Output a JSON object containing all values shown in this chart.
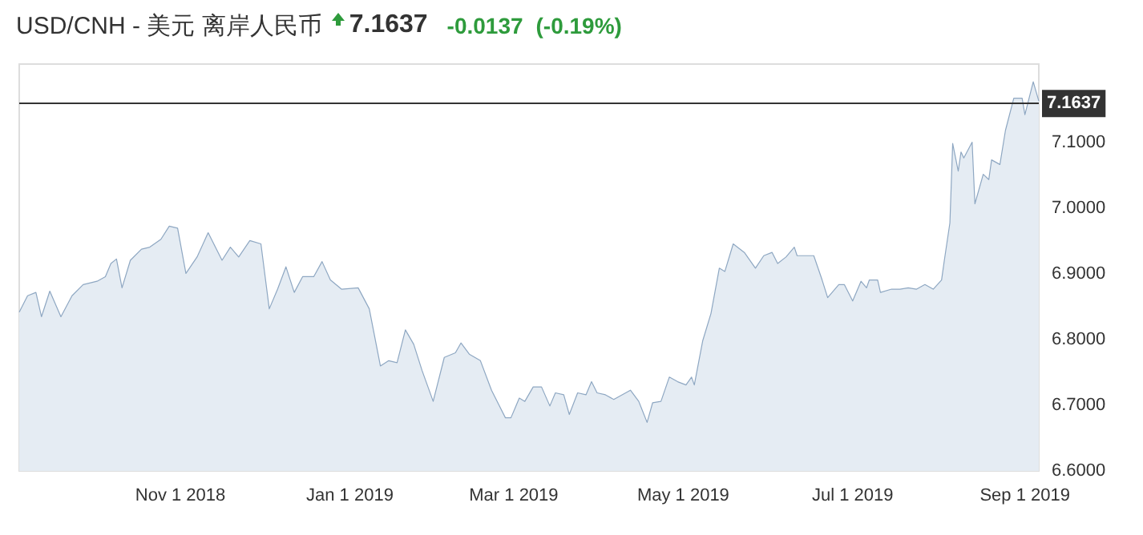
{
  "chart_data": {
    "type": "area",
    "title": "USD/CNH - 美元 离岸人民币",
    "annotations": [
      "7.1637",
      "-0.0137",
      "(-0.19%)"
    ],
    "x": [
      "2018-09-04",
      "2018-09-07",
      "2018-09-10",
      "2018-09-12",
      "2018-09-15",
      "2018-09-19",
      "2018-09-23",
      "2018-09-27",
      "2018-10-02",
      "2018-10-05",
      "2018-10-07",
      "2018-10-09",
      "2018-10-11",
      "2018-10-14",
      "2018-10-18",
      "2018-10-21",
      "2018-10-25",
      "2018-10-28",
      "2018-10-31",
      "2018-11-03",
      "2018-11-07",
      "2018-11-11",
      "2018-11-16",
      "2018-11-19",
      "2018-11-22",
      "2018-11-26",
      "2018-11-30",
      "2018-12-03",
      "2018-12-06",
      "2018-12-09",
      "2018-12-12",
      "2018-12-15",
      "2018-12-19",
      "2018-12-22",
      "2018-12-25",
      "2018-12-29",
      "2019-01-04",
      "2019-01-08",
      "2019-01-12",
      "2019-01-15",
      "2019-01-18",
      "2019-01-21",
      "2019-01-24",
      "2019-01-27",
      "2019-01-31",
      "2019-02-04",
      "2019-02-08",
      "2019-02-10",
      "2019-02-13",
      "2019-02-17",
      "2019-02-21",
      "2019-02-26",
      "2019-02-28",
      "2019-03-03",
      "2019-03-05",
      "2019-03-08",
      "2019-03-11",
      "2019-03-14",
      "2019-03-16",
      "2019-03-19",
      "2019-03-21",
      "2019-03-24",
      "2019-03-27",
      "2019-03-29",
      "2019-03-31",
      "2019-04-03",
      "2019-04-06",
      "2019-04-12",
      "2019-04-15",
      "2019-04-18",
      "2019-04-20",
      "2019-04-23",
      "2019-04-26",
      "2019-04-29",
      "2019-05-02",
      "2019-05-04",
      "2019-05-05",
      "2019-05-08",
      "2019-05-11",
      "2019-05-14",
      "2019-05-16",
      "2019-05-19",
      "2019-05-23",
      "2019-05-27",
      "2019-05-30",
      "2019-06-02",
      "2019-06-04",
      "2019-06-07",
      "2019-06-10",
      "2019-06-11",
      "2019-06-17",
      "2019-06-20",
      "2019-06-22",
      "2019-06-26",
      "2019-06-28",
      "2019-07-01",
      "2019-07-04",
      "2019-07-06",
      "2019-07-07",
      "2019-07-10",
      "2019-07-11",
      "2019-07-15",
      "2019-07-18",
      "2019-07-21",
      "2019-07-24",
      "2019-07-27",
      "2019-07-30",
      "2019-08-02",
      "2019-08-03",
      "2019-08-05",
      "2019-08-06",
      "2019-08-08",
      "2019-08-09",
      "2019-08-10",
      "2019-08-13",
      "2019-08-14",
      "2019-08-17",
      "2019-08-19",
      "2019-08-20",
      "2019-08-23",
      "2019-08-25",
      "2019-08-28",
      "2019-08-31",
      "2019-09-01",
      "2019-09-04",
      "2019-09-06"
    ],
    "series": [
      {
        "color": "#8ea7c2",
        "values": [
          6.842,
          6.867,
          6.872,
          6.835,
          6.874,
          6.835,
          6.867,
          6.884,
          6.889,
          6.896,
          6.916,
          6.923,
          6.879,
          6.921,
          6.938,
          6.941,
          6.953,
          6.973,
          6.97,
          6.901,
          6.926,
          6.963,
          6.921,
          6.941,
          6.926,
          6.951,
          6.946,
          6.847,
          6.877,
          6.911,
          6.872,
          6.896,
          6.896,
          6.919,
          6.891,
          6.877,
          6.879,
          6.847,
          6.76,
          6.768,
          6.765,
          6.815,
          6.793,
          6.753,
          6.706,
          6.773,
          6.78,
          6.795,
          6.778,
          6.768,
          6.723,
          6.681,
          6.681,
          6.711,
          6.706,
          6.728,
          6.728,
          6.699,
          6.719,
          6.716,
          6.686,
          6.719,
          6.716,
          6.736,
          6.719,
          6.716,
          6.709,
          6.723,
          6.706,
          6.674,
          6.704,
          6.706,
          6.743,
          6.736,
          6.731,
          6.743,
          6.731,
          6.798,
          6.84,
          6.909,
          6.904,
          6.946,
          6.933,
          6.909,
          6.928,
          6.933,
          6.916,
          6.926,
          6.941,
          6.928,
          6.928,
          6.891,
          6.864,
          6.884,
          6.884,
          6.859,
          6.889,
          6.879,
          6.891,
          6.891,
          6.872,
          6.877,
          6.877,
          6.879,
          6.877,
          6.884,
          6.877,
          6.891,
          6.921,
          6.978,
          7.099,
          7.057,
          7.086,
          7.077,
          7.101,
          7.007,
          7.052,
          7.044,
          7.074,
          7.067,
          7.119,
          7.168,
          7.168,
          7.143,
          7.193,
          7.1637
        ]
      }
    ],
    "xlim": [
      "2018-09-04",
      "2019-09-06"
    ],
    "xticks": [
      {
        "value": "2018-11-01",
        "label": "Nov 1 2018"
      },
      {
        "value": "2019-01-01",
        "label": "Jan 1 2019"
      },
      {
        "value": "2019-03-01",
        "label": "Mar 1 2019"
      },
      {
        "value": "2019-05-01",
        "label": "May 1 2019"
      },
      {
        "value": "2019-07-01",
        "label": "Jul 1 2019"
      },
      {
        "value": "2019-09-01",
        "label": "Sep 1 2019"
      }
    ],
    "ylim": [
      6.6,
      7.22
    ],
    "yticks": [
      {
        "value": 6.6,
        "label": "6.6000"
      },
      {
        "value": 6.7,
        "label": "6.7000"
      },
      {
        "value": 6.8,
        "label": "6.8000"
      },
      {
        "value": 6.9,
        "label": "6.9000"
      },
      {
        "value": 7.0,
        "label": "7.0000"
      },
      {
        "value": 7.1,
        "label": "7.1000"
      }
    ],
    "ref_lines": [
      {
        "axis": "y",
        "value": 7.1637,
        "label": "7.1637",
        "color": "#333333"
      }
    ],
    "grid": false
  }
}
